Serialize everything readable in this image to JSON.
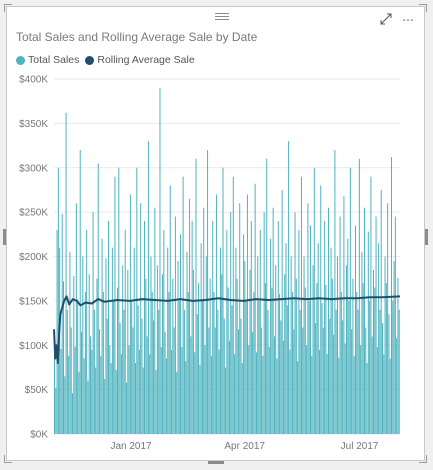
{
  "visual": {
    "toolbar": {
      "focus_icon": "focus-mode-icon",
      "more_icon": "more-options-icon"
    }
  },
  "chart_data": {
    "type": "bar",
    "title": "Total Sales and Rolling Average Sale by Date",
    "xlabel": "",
    "ylabel": "",
    "ylim": [
      0,
      400000
    ],
    "y_ticks": [
      "$0K",
      "$50K",
      "$100K",
      "$150K",
      "$200K",
      "$250K",
      "$300K",
      "$350K",
      "$400K"
    ],
    "x_tick_labels": [
      "Jan 2017",
      "Apr 2017",
      "Jul 2017"
    ],
    "x_tick_days": [
      61,
      151,
      242
    ],
    "x_domain_days": [
      0,
      274
    ],
    "grid": true,
    "legend_position": "top-left",
    "series": [
      {
        "name": "Total Sales",
        "kind": "bar",
        "color": "#4fb3bf",
        "values": [
          118000,
          52000,
          230000,
          300000,
          210000,
          96000,
          248000,
          172000,
          65000,
          362000,
          140000,
          88000,
          205000,
          120000,
          46000,
          178000,
          98000,
          260000,
          152000,
          70000,
          320000,
          115000,
          200000,
          85000,
          160000,
          230000,
          60000,
          180000,
          110000,
          95000,
          250000,
          140000,
          75000,
          175000,
          305000,
          118000,
          88000,
          220000,
          160000,
          62000,
          198000,
          130000,
          240000,
          100000,
          80000,
          210000,
          150000,
          290000,
          72000,
          165000,
          300000,
          125000,
          90000,
          190000,
          140000,
          230000,
          58000,
          185000,
          100000,
          270000,
          150000,
          120000,
          210000,
          80000,
          300000,
          145000,
          95000,
          260000,
          130000,
          75000,
          240000,
          175000,
          110000,
          330000,
          90000,
          200000,
          160000,
          128000,
          255000,
          72000,
          190000,
          140000,
          390000,
          98000,
          180000,
          230000,
          115000,
          85000,
          210000,
          160000,
          280000,
          95000,
          175000,
          120000,
          245000,
          70000,
          195000,
          150000,
          225000,
          98000,
          290000,
          140000,
          82000,
          205000,
          160000,
          265000,
          110000,
          240000,
          185000,
          92000,
          310000,
          135000,
          170000,
          78000,
          215000,
          150000,
          255000,
          100000,
          200000,
          320000,
          120000,
          175000,
          88000,
          240000,
          160000,
          120000,
          270000,
          140000,
          95000,
          210000,
          180000,
          300000,
          130000,
          75000,
          230000,
          165000,
          105000,
          250000,
          145000,
          290000,
          90000,
          210000,
          175000,
          118000,
          260000,
          130000,
          80000,
          225000,
          195000,
          150000,
          270000,
          100000,
          185000,
          240000,
          115000,
          160000,
          282000,
          92000,
          200000,
          150000,
          230000,
          120000,
          88000,
          250000,
          170000,
          310000,
          140000,
          98000,
          220000,
          165000,
          255000,
          110000,
          190000,
          85000,
          240000,
          158000,
          128000,
          275000,
          105000,
          180000,
          215000,
          145000,
          330000,
          95000,
          200000,
          160000,
          118000,
          250000,
          175000,
          82000,
          230000,
          140000,
          290000,
          120000,
          200000,
          165000,
          100000,
          260000,
          150000,
          235000,
          88000,
          190000,
          300000,
          125000,
          170000,
          215000,
          95000,
          280000,
          148000,
          120000,
          240000,
          168000,
          90000,
          255000,
          130000,
          210000,
          175000,
          112000,
          320000,
          140000,
          200000,
          86000,
          245000,
          160000,
          128000,
          268000,
          102000,
          190000,
          220000,
          150000,
          300000,
          118000,
          175000,
          88000,
          235000,
          160000,
          140000,
          310000,
          100000,
          205000,
          170000,
          255000,
          120000,
          80000,
          228000,
          150000,
          290000,
          110000,
          185000,
          165000,
          245000,
          98000,
          215000,
          140000,
          275000,
          125000,
          90000,
          200000,
          170000,
          260000,
          135000,
          85000,
          312000,
          150000,
          195000,
          245000,
          108000,
          176000,
          140000
        ],
        "color_key": "teal"
      },
      {
        "name": "Rolling Average Sale",
        "kind": "line",
        "color": "#1f4e6b",
        "x_days": [
          0,
          1,
          2,
          3,
          4,
          5,
          6,
          8,
          10,
          12,
          15,
          18,
          21,
          25,
          30,
          35,
          40,
          50,
          60,
          70,
          80,
          90,
          100,
          110,
          120,
          130,
          140,
          150,
          160,
          170,
          180,
          190,
          200,
          210,
          220,
          230,
          240,
          250,
          260,
          274
        ],
        "values": [
          118000,
          85000,
          100000,
          80000,
          112000,
          135000,
          140000,
          150000,
          155000,
          146000,
          152000,
          150000,
          145000,
          148000,
          147000,
          152000,
          149000,
          151000,
          150000,
          152000,
          151000,
          150000,
          152000,
          150000,
          151000,
          153000,
          151000,
          150000,
          152000,
          151000,
          152000,
          153000,
          152000,
          153000,
          152000,
          153000,
          153000,
          154000,
          154000,
          155000
        ]
      }
    ]
  }
}
